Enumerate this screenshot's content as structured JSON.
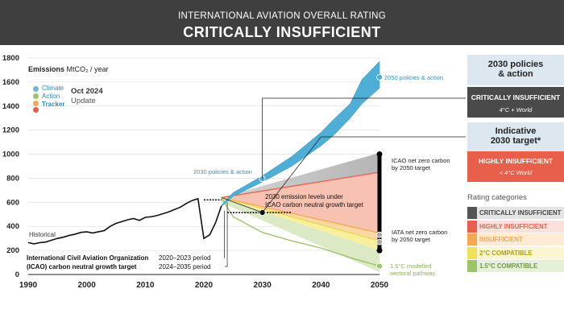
{
  "header": {
    "supertitle": "INTERNATIONAL AVIATION OVERALL RATING",
    "title": "CRITICALLY INSUFFICIENT"
  },
  "logo": {
    "line1": "Climate",
    "line2": "Action",
    "line3": "Tracker"
  },
  "update": {
    "date": "Oct 2024",
    "label": "Update"
  },
  "sidebar": {
    "policies": {
      "heading_line1": "2030 policies",
      "heading_line2": "& action",
      "rating": "CRITICALLY INSUFFICIENT",
      "sub": "4°C + World"
    },
    "target": {
      "heading_line1": "Indicative",
      "heading_line2": "2030 target*",
      "rating": "HIGHLY INSUFFICIENT",
      "sub": "< 4°C World"
    }
  },
  "legend": {
    "title": "Rating categories",
    "items": [
      {
        "label": "CRITICALLY INSUFFICIENT",
        "color": "#555555",
        "bg": "#e4e4e4",
        "text": "#444444"
      },
      {
        "label": "HIGHLY INSUFFICIENT",
        "color": "#e8604c",
        "bg": "#fbe1dc",
        "text": "#e8604c"
      },
      {
        "label": "INSUFFICIENT",
        "color": "#f3a953",
        "bg": "#fdebd6",
        "text": "#f3a953"
      },
      {
        "label": "2°C COMPATIBLE",
        "color": "#f0e05a",
        "bg": "#fbf6d2",
        "text": "#b0a010"
      },
      {
        "label": "1.5°C COMPATIBLE",
        "color": "#9cc46a",
        "bg": "#e6f0d8",
        "text": "#6f9a40"
      }
    ]
  },
  "annotations": {
    "historical": "Historical",
    "policies_2050": "2050 policies & action",
    "policies_2030": "2030 policies & action",
    "icao_nz_line1": "ICAO net zero carbon",
    "icao_nz_line2": "by 2050 target",
    "iata_nz_line1": "IATA net zero carbon",
    "iata_nz_line2": "by 2050 target",
    "levels_line1": "2030 emission levels under",
    "levels_line2": "ICAO carbon neutral growth target",
    "icao_org_line1": "International Civil Aviation Organization",
    "icao_org_line2": "(ICAO) carbon neutral growth target",
    "period1": "2020–2023 period",
    "period2": "2024–2035 period",
    "modelled_line1": "1.5°C modelled",
    "modelled_line2": "sectoral pathway"
  },
  "chart_data": {
    "type": "line",
    "title": "",
    "xlabel": "",
    "ylabel_bold": "Emissions",
    "ylabel_unit": "MtCO₂ / year",
    "xlim": [
      1990,
      2050
    ],
    "ylim": [
      0,
      1800
    ],
    "x_ticks": [
      1990,
      2000,
      2010,
      2020,
      2030,
      2040,
      2050
    ],
    "y_ticks": [
      0,
      200,
      400,
      600,
      800,
      1000,
      1200,
      1400,
      1600,
      1800
    ],
    "historical": {
      "x": [
        1990,
        1991,
        1992,
        1993,
        1994,
        1995,
        1996,
        1997,
        1998,
        1999,
        2000,
        2001,
        2002,
        2003,
        2004,
        2005,
        2006,
        2007,
        2008,
        2009,
        2010,
        2011,
        2012,
        2013,
        2014,
        2015,
        2016,
        2017,
        2018,
        2019,
        2020,
        2021,
        2022,
        2023
      ],
      "y": [
        265,
        255,
        265,
        270,
        285,
        300,
        310,
        325,
        335,
        350,
        355,
        345,
        355,
        365,
        400,
        425,
        440,
        455,
        465,
        450,
        475,
        480,
        490,
        505,
        520,
        540,
        560,
        590,
        615,
        630,
        300,
        330,
        430,
        570
      ]
    },
    "policies_band": {
      "x": [
        2023,
        2025,
        2030,
        2035,
        2040,
        2042,
        2045,
        2047,
        2050
      ],
      "low": [
        565,
        650,
        770,
        900,
        1070,
        1150,
        1300,
        1420,
        1550
      ],
      "high": [
        575,
        680,
        820,
        980,
        1180,
        1280,
        1420,
        1620,
        1770
      ]
    },
    "rating_bands": {
      "x": [
        2023,
        2050
      ],
      "critically_insufficient_top": [
        640,
        1010
      ],
      "highly_insufficient_top": [
        640,
        850
      ],
      "insufficient_top": [
        640,
        345
      ],
      "two_degree_top": [
        640,
        280
      ],
      "one_point_five_top": [
        640,
        200
      ],
      "one_point_five_bottom": [
        600,
        20
      ]
    },
    "modelled_pathway_1_5": {
      "x": [
        2023,
        2025,
        2030,
        2035,
        2040,
        2045,
        2050
      ],
      "y": [
        640,
        480,
        350,
        280,
        220,
        140,
        70
      ]
    },
    "icao_target_period_2020_2023": {
      "x": [
        2020,
        2023
      ],
      "y": 620
    },
    "icao_target_period_2024_2035": {
      "x": [
        2024,
        2035
      ],
      "y": 515
    },
    "icao_net_zero_range": {
      "x": 2050,
      "y": [
        200,
        1000
      ]
    },
    "markers": [
      {
        "label": "2050 policies & action",
        "x": 2050,
        "y": 1640
      },
      {
        "label": "2030 policies & action",
        "x": 2030,
        "y": 795
      },
      {
        "label": "2030 emission levels under ICAO",
        "x": 2030,
        "y": 515
      },
      {
        "label": "IATA net zero",
        "x": 2050,
        "y": 330
      },
      {
        "label": "IATA net zero",
        "x": 2050,
        "y": 270
      },
      {
        "label": "1.5°C modelled sectoral pathway",
        "x": 2050,
        "y": 70
      }
    ]
  }
}
